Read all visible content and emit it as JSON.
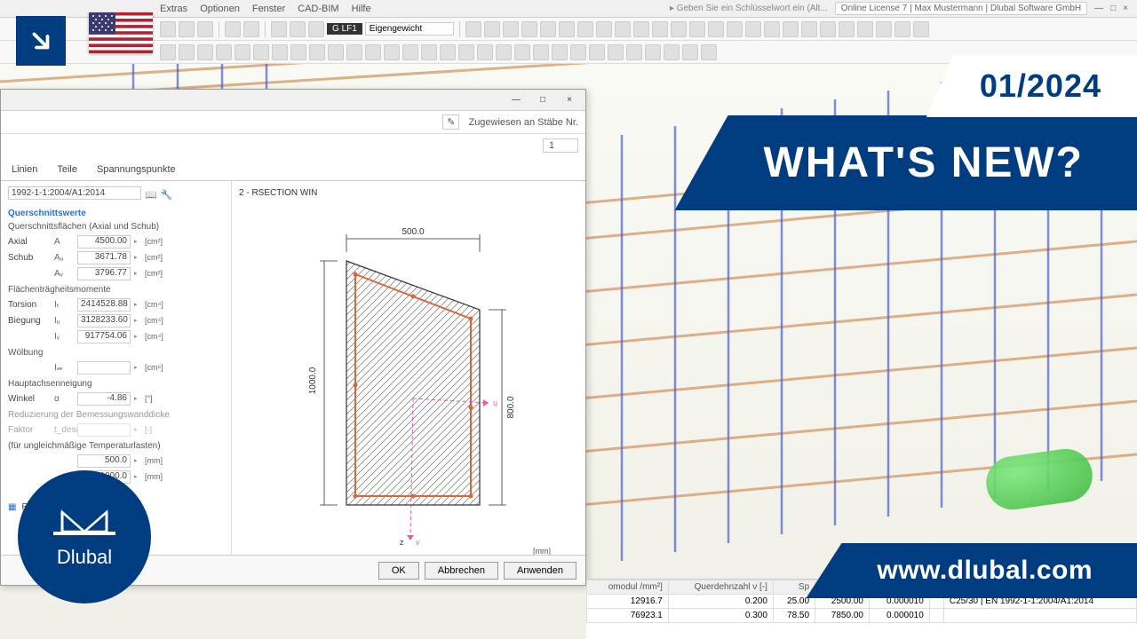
{
  "menu": [
    "Extras",
    "Optionen",
    "Fenster",
    "CAD-BIM",
    "Hilfe"
  ],
  "license": {
    "hint": "Geben Sie ein Schlüsselwort ein (Alt...",
    "text": "Online License 7 | Max Mustermann | Dlubal Software GmbH"
  },
  "loadcase": {
    "tag": "LF1",
    "name": "Eigengewicht"
  },
  "dialog": {
    "assigned_label": "Zugewiesen an Stäbe Nr.",
    "assigned_value": "1",
    "tabs": [
      "Linien",
      "Teile",
      "Spannungspunkte"
    ],
    "norm": "1992-1-1:2004/A1:2014",
    "group_title": "Querschnittswerte",
    "sub_axial": "Querschnittsflächen (Axial und Schub)",
    "rows_area": [
      {
        "label": "Axial",
        "sym": "A",
        "val": "4500.00",
        "unit": "[cm²]"
      },
      {
        "label": "Schub",
        "sym": "Aᵤ",
        "val": "3671.78",
        "unit": "[cm²]"
      },
      {
        "label": "",
        "sym": "Aᵥ",
        "val": "3796.77",
        "unit": "[cm²]"
      }
    ],
    "sub_inertia": "Flächenträgheitsmomente",
    "rows_inertia": [
      {
        "label": "Torsion",
        "sym": "Iₜ",
        "val": "2414528.88",
        "unit": "[cm⁴]"
      },
      {
        "label": "Biegung",
        "sym": "Iᵤ",
        "val": "3128233.60",
        "unit": "[cm⁴]"
      },
      {
        "label": "",
        "sym": "Iᵥ",
        "val": "917754.06",
        "unit": "[cm⁴]"
      }
    ],
    "sub_warp": "Wölbung",
    "row_warp": {
      "sym": "I𝓌",
      "val": "",
      "unit": "[cm⁶]"
    },
    "sub_axis": "Hauptachsenneigung",
    "row_axis": {
      "label": "Winkel",
      "sym": "α",
      "val": "-4.86",
      "unit": "[°]"
    },
    "sub_reduce": "Reduzierung der Bemessungswanddicke",
    "row_reduce": {
      "label": "Faktor",
      "sym": "t_des/t",
      "val": "",
      "unit": "[-]"
    },
    "sub_temp": "(für ungleichmäßige Temperaturlasten)",
    "rows_temp": [
      {
        "sym": "",
        "val": "500.0",
        "unit": "[mm]"
      },
      {
        "sym": "",
        "val": "1000.0",
        "unit": "[mm]"
      }
    ],
    "section_name": "RSECTION",
    "preview_title": "2 - RSECTION WIN",
    "dims": {
      "width": "500.0",
      "height_left": "1000.0",
      "height_right": "800.0"
    },
    "unit_label": "[mm]",
    "buttons": {
      "ok": "OK",
      "cancel": "Abbrechen",
      "apply": "Anwenden"
    }
  },
  "table": {
    "headers": [
      "omodul\n/mm²]",
      "Querdehnzahl\nν [-]",
      "Sp"
    ],
    "rows": [
      [
        "12916.7",
        "0.200",
        "25.00",
        "2500.00",
        "0.000010",
        "",
        "C25/30 | EN 1992-1-1:2004/A1:2014"
      ],
      [
        "76923.1",
        "0.300",
        "78.50",
        "7850.00",
        "0.000010",
        "",
        ""
      ]
    ]
  },
  "overlay": {
    "date": "01/2024",
    "headline": "WHAT'S NEW?",
    "brand": "Dlubal",
    "url": "www.dlubal.com"
  },
  "colors": {
    "brand_blue": "#003d80",
    "rebar_orange": "#d4915a",
    "rebar_blue": "#4a5fd4",
    "section_hatch": "#888",
    "section_rebar": "#d46a3a",
    "axis_pink": "#e85aa8"
  }
}
